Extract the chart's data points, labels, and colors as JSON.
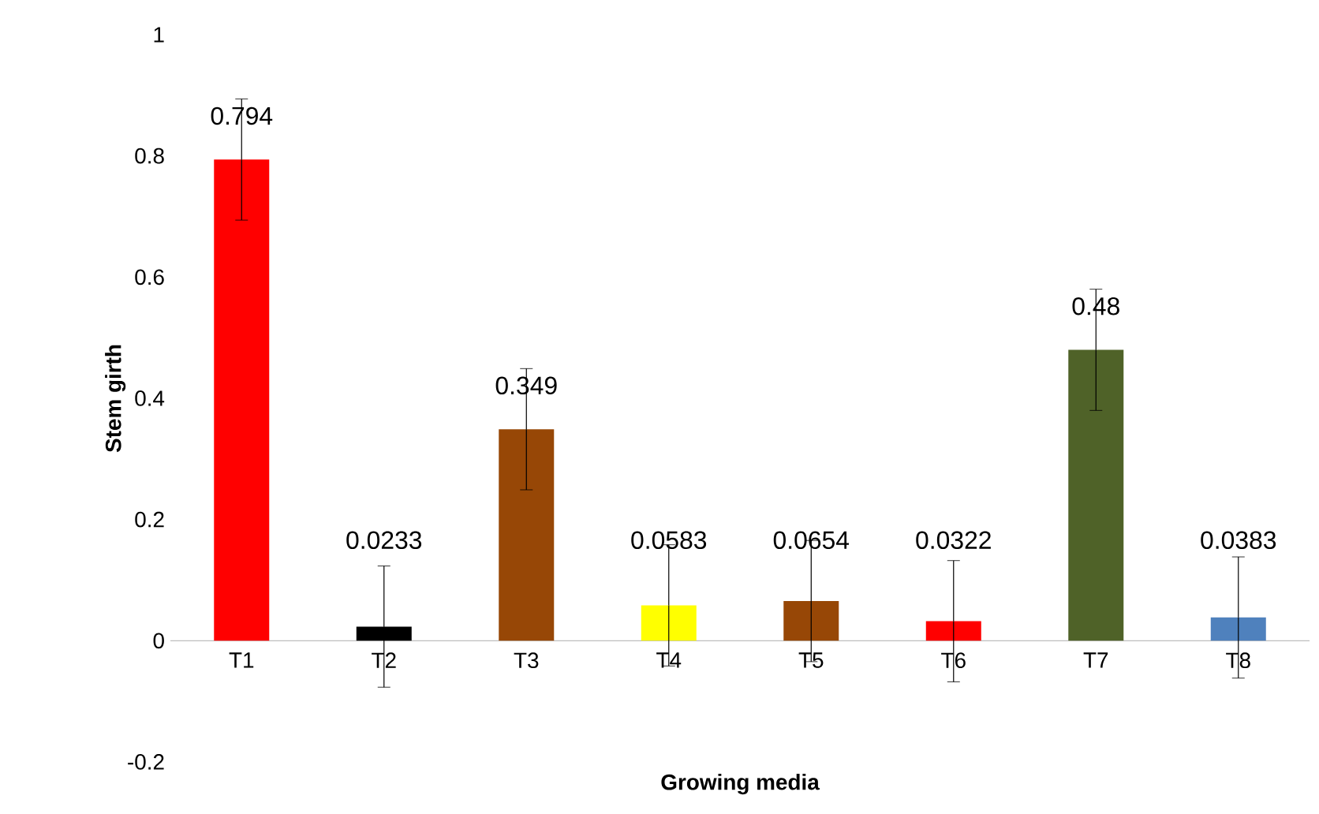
{
  "chart_data": {
    "type": "bar",
    "xlabel": "Growing media",
    "ylabel": "Stem girth",
    "categories": [
      "T1",
      "T2",
      "T3",
      "T4",
      "T5",
      "T6",
      "T7",
      "T8"
    ],
    "values": [
      0.794,
      0.0233,
      0.349,
      0.0583,
      0.0654,
      0.0322,
      0.48,
      0.0383
    ],
    "colors": [
      "#ff0000",
      "#000000",
      "#974706",
      "#ffff00",
      "#974706",
      "#ff0000",
      "#4f6228",
      "#4f81bd"
    ],
    "errors": [
      0.1,
      0.1,
      0.1,
      0.1,
      0.1,
      0.1,
      0.1,
      0.1
    ],
    "data_labels": true,
    "ylim": [
      -0.2,
      1
    ],
    "yticks": [
      -0.2,
      0,
      0.2,
      0.4,
      0.6,
      0.8,
      1
    ],
    "grid": false
  }
}
